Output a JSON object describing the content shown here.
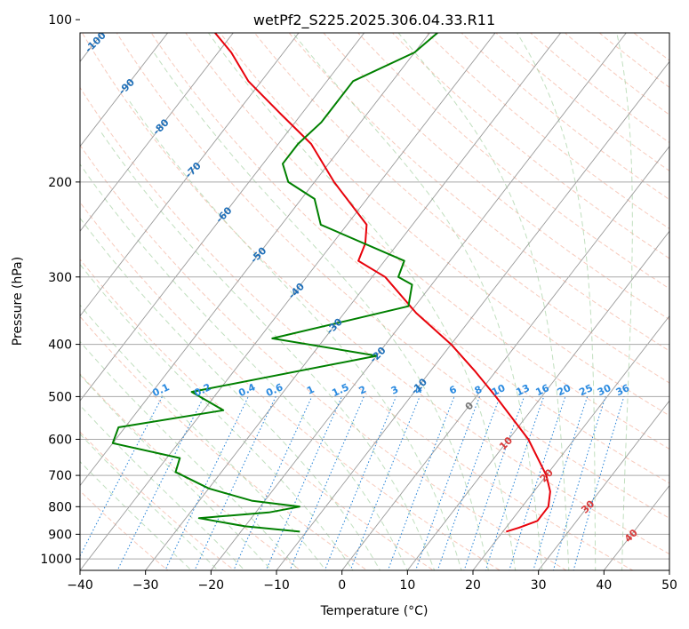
{
  "chart_data": {
    "type": "line",
    "title": "wetPf2_S225.2025.306.04.33.R11",
    "xlabel": "Temperature (°C)",
    "ylabel": "Pressure (hPa)",
    "xlim": [
      -40,
      50
    ],
    "ylim": [
      1050,
      100
    ],
    "y_scale": "log",
    "skew_deg_per_log10p": 63.6,
    "x_ticks": [
      -40,
      -30,
      -20,
      -10,
      0,
      10,
      20,
      30,
      40,
      50
    ],
    "y_ticks": [
      1000,
      900,
      800,
      700,
      600,
      500,
      400,
      300,
      200,
      100
    ],
    "grid": true,
    "series": [
      {
        "name": "",
        "color": "#e8020b",
        "points": [
          {
            "p": 890,
            "t": 20.5
          },
          {
            "p": 875,
            "t": 22
          },
          {
            "p": 850,
            "t": 24
          },
          {
            "p": 800,
            "t": 24
          },
          {
            "p": 750,
            "t": 22.5
          },
          {
            "p": 700,
            "t": 20
          },
          {
            "p": 600,
            "t": 13
          },
          {
            "p": 500,
            "t": 3
          },
          {
            "p": 450,
            "t": -3
          },
          {
            "p": 400,
            "t": -10
          },
          {
            "p": 350,
            "t": -19
          },
          {
            "p": 300,
            "t": -28
          },
          {
            "p": 280,
            "t": -34
          },
          {
            "p": 260,
            "t": -35
          },
          {
            "p": 240,
            "t": -37
          },
          {
            "p": 200,
            "t": -47
          },
          {
            "p": 170,
            "t": -55
          },
          {
            "p": 150,
            "t": -63
          },
          {
            "p": 130,
            "t": -72
          },
          {
            "p": 115,
            "t": -78
          },
          {
            "p": 100,
            "t": -86
          }
        ]
      },
      {
        "name": "",
        "color": "#008000",
        "points": [
          {
            "p": 890,
            "t": -11
          },
          {
            "p": 870,
            "t": -20
          },
          {
            "p": 840,
            "t": -28
          },
          {
            "p": 820,
            "t": -18
          },
          {
            "p": 800,
            "t": -14
          },
          {
            "p": 780,
            "t": -22
          },
          {
            "p": 740,
            "t": -30
          },
          {
            "p": 690,
            "t": -37
          },
          {
            "p": 650,
            "t": -38
          },
          {
            "p": 610,
            "t": -50
          },
          {
            "p": 570,
            "t": -51
          },
          {
            "p": 530,
            "t": -37
          },
          {
            "p": 490,
            "t": -44
          },
          {
            "p": 420,
            "t": -20
          },
          {
            "p": 390,
            "t": -38
          },
          {
            "p": 340,
            "t": -21
          },
          {
            "p": 310,
            "t": -23
          },
          {
            "p": 300,
            "t": -26
          },
          {
            "p": 280,
            "t": -27
          },
          {
            "p": 240,
            "t": -44
          },
          {
            "p": 215,
            "t": -48
          },
          {
            "p": 200,
            "t": -54
          },
          {
            "p": 185,
            "t": -57
          },
          {
            "p": 170,
            "t": -57
          },
          {
            "p": 155,
            "t": -56
          },
          {
            "p": 130,
            "t": -56
          },
          {
            "p": 115,
            "t": -50
          },
          {
            "p": 100,
            "t": -48
          }
        ]
      }
    ],
    "isotherm_labels": [
      "-100",
      "-90",
      "-80",
      "-70",
      "-60",
      "-50",
      "-40",
      "-30",
      "-20",
      "-10"
    ],
    "mixing_ratio_labels": [
      "0.1",
      "0.2",
      "0.4",
      "0.6",
      "1",
      "1.5",
      "2",
      "3",
      "4",
      "6",
      "8",
      "10",
      "13",
      "16",
      "20",
      "25",
      "30",
      "36"
    ],
    "moist_adiabat_labels": [
      "0",
      "10",
      "20",
      "30",
      "40"
    ]
  }
}
